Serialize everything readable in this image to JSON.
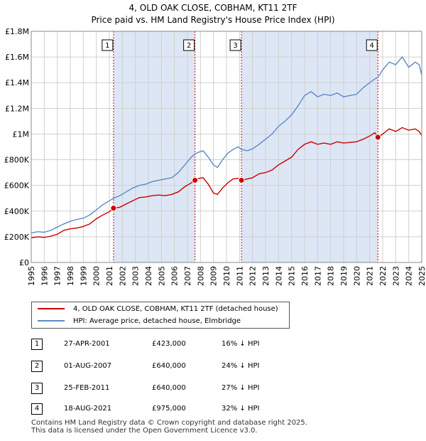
{
  "title_line1": "4, OLD OAK CLOSE, COBHAM, KT11 2TF",
  "title_line2": "Price paid vs. HM Land Registry's House Price Index (HPI)",
  "chart_data": {
    "type": "line",
    "xlim": [
      1995,
      2025
    ],
    "ylim": [
      0,
      1800000
    ],
    "yticks": [
      {
        "value": 0,
        "label": "£0"
      },
      {
        "value": 200000,
        "label": "£200K"
      },
      {
        "value": 400000,
        "label": "£400K"
      },
      {
        "value": 600000,
        "label": "£600K"
      },
      {
        "value": 800000,
        "label": "£800K"
      },
      {
        "value": 1000000,
        "label": "£1M"
      },
      {
        "value": 1200000,
        "label": "£1.2M"
      },
      {
        "value": 1400000,
        "label": "£1.4M"
      },
      {
        "value": 1600000,
        "label": "£1.6M"
      },
      {
        "value": 1800000,
        "label": "£1.8M"
      }
    ],
    "xticks": [
      "1995",
      "1996",
      "1997",
      "1998",
      "1999",
      "2000",
      "2001",
      "2002",
      "2003",
      "2004",
      "2005",
      "2006",
      "2007",
      "2008",
      "2009",
      "2010",
      "2011",
      "2012",
      "2013",
      "2014",
      "2015",
      "2016",
      "2017",
      "2018",
      "2019",
      "2020",
      "2021",
      "2022",
      "2023",
      "2024",
      "2025"
    ],
    "grid": true,
    "colors": {
      "property": "#cc0000",
      "hpi": "#5b8ac7",
      "shade": "#dde6f5",
      "marker": "#cc0000"
    },
    "shaded_periods": [
      [
        2001.32,
        2007.58
      ],
      [
        2011.15,
        2021.63
      ]
    ],
    "series": [
      {
        "name": "4, OLD OAK CLOSE, COBHAM, KT11 2TF (detached house)",
        "color": "#cc0000",
        "points": [
          [
            1995.0,
            192000
          ],
          [
            1995.5,
            200000
          ],
          [
            1996.0,
            195000
          ],
          [
            1996.5,
            205000
          ],
          [
            1997.0,
            220000
          ],
          [
            1997.5,
            250000
          ],
          [
            1998.0,
            262000
          ],
          [
            1998.5,
            268000
          ],
          [
            1999.0,
            280000
          ],
          [
            1999.5,
            300000
          ],
          [
            2000.0,
            340000
          ],
          [
            2000.5,
            370000
          ],
          [
            2001.0,
            395000
          ],
          [
            2001.32,
            423000
          ],
          [
            2001.8,
            430000
          ],
          [
            2002.3,
            455000
          ],
          [
            2002.8,
            480000
          ],
          [
            2003.3,
            505000
          ],
          [
            2003.8,
            510000
          ],
          [
            2004.3,
            520000
          ],
          [
            2004.8,
            525000
          ],
          [
            2005.3,
            520000
          ],
          [
            2005.8,
            530000
          ],
          [
            2006.3,
            550000
          ],
          [
            2006.8,
            590000
          ],
          [
            2007.3,
            620000
          ],
          [
            2007.58,
            640000
          ],
          [
            2007.9,
            655000
          ],
          [
            2008.2,
            660000
          ],
          [
            2008.6,
            610000
          ],
          [
            2009.0,
            540000
          ],
          [
            2009.3,
            530000
          ],
          [
            2009.7,
            580000
          ],
          [
            2010.1,
            620000
          ],
          [
            2010.5,
            650000
          ],
          [
            2010.9,
            655000
          ],
          [
            2011.15,
            640000
          ],
          [
            2011.6,
            650000
          ],
          [
            2012.0,
            660000
          ],
          [
            2012.5,
            690000
          ],
          [
            2013.0,
            700000
          ],
          [
            2013.5,
            720000
          ],
          [
            2014.0,
            760000
          ],
          [
            2014.5,
            790000
          ],
          [
            2015.0,
            820000
          ],
          [
            2015.5,
            880000
          ],
          [
            2016.0,
            920000
          ],
          [
            2016.5,
            940000
          ],
          [
            2017.0,
            920000
          ],
          [
            2017.5,
            930000
          ],
          [
            2018.0,
            920000
          ],
          [
            2018.5,
            940000
          ],
          [
            2019.0,
            930000
          ],
          [
            2019.5,
            935000
          ],
          [
            2020.0,
            940000
          ],
          [
            2020.5,
            960000
          ],
          [
            2021.0,
            985000
          ],
          [
            2021.4,
            1010000
          ],
          [
            2021.63,
            975000
          ],
          [
            2022.0,
            1000000
          ],
          [
            2022.5,
            1040000
          ],
          [
            2023.0,
            1020000
          ],
          [
            2023.5,
            1050000
          ],
          [
            2024.0,
            1030000
          ],
          [
            2024.5,
            1040000
          ],
          [
            2024.8,
            1020000
          ],
          [
            2025.0,
            990000
          ]
        ]
      },
      {
        "name": "HPI: Average price, detached house, Elmbridge",
        "color": "#5b8ac7",
        "points": [
          [
            1995.0,
            230000
          ],
          [
            1995.5,
            240000
          ],
          [
            1996.0,
            235000
          ],
          [
            1996.5,
            250000
          ],
          [
            1997.0,
            275000
          ],
          [
            1997.5,
            300000
          ],
          [
            1998.0,
            320000
          ],
          [
            1998.5,
            335000
          ],
          [
            1999.0,
            345000
          ],
          [
            1999.5,
            370000
          ],
          [
            2000.0,
            410000
          ],
          [
            2000.5,
            450000
          ],
          [
            2001.0,
            480000
          ],
          [
            2001.32,
            500000
          ],
          [
            2001.8,
            520000
          ],
          [
            2002.3,
            550000
          ],
          [
            2002.8,
            580000
          ],
          [
            2003.3,
            600000
          ],
          [
            2003.8,
            610000
          ],
          [
            2004.3,
            630000
          ],
          [
            2004.8,
            640000
          ],
          [
            2005.3,
            650000
          ],
          [
            2005.8,
            660000
          ],
          [
            2006.3,
            700000
          ],
          [
            2006.8,
            760000
          ],
          [
            2007.3,
            820000
          ],
          [
            2007.58,
            845000
          ],
          [
            2007.9,
            860000
          ],
          [
            2008.2,
            870000
          ],
          [
            2008.6,
            820000
          ],
          [
            2009.0,
            760000
          ],
          [
            2009.3,
            740000
          ],
          [
            2009.7,
            800000
          ],
          [
            2010.1,
            850000
          ],
          [
            2010.5,
            880000
          ],
          [
            2010.9,
            900000
          ],
          [
            2011.15,
            880000
          ],
          [
            2011.6,
            870000
          ],
          [
            2012.0,
            885000
          ],
          [
            2012.5,
            920000
          ],
          [
            2013.0,
            960000
          ],
          [
            2013.5,
            1000000
          ],
          [
            2014.0,
            1060000
          ],
          [
            2014.5,
            1100000
          ],
          [
            2015.0,
            1150000
          ],
          [
            2015.5,
            1220000
          ],
          [
            2016.0,
            1300000
          ],
          [
            2016.5,
            1330000
          ],
          [
            2017.0,
            1290000
          ],
          [
            2017.5,
            1310000
          ],
          [
            2018.0,
            1300000
          ],
          [
            2018.5,
            1320000
          ],
          [
            2019.0,
            1290000
          ],
          [
            2019.5,
            1300000
          ],
          [
            2020.0,
            1310000
          ],
          [
            2020.5,
            1360000
          ],
          [
            2021.0,
            1400000
          ],
          [
            2021.4,
            1430000
          ],
          [
            2021.63,
            1440000
          ],
          [
            2022.0,
            1500000
          ],
          [
            2022.5,
            1560000
          ],
          [
            2023.0,
            1540000
          ],
          [
            2023.5,
            1600000
          ],
          [
            2024.0,
            1520000
          ],
          [
            2024.5,
            1560000
          ],
          [
            2024.8,
            1540000
          ],
          [
            2025.0,
            1460000
          ]
        ]
      }
    ],
    "sales": [
      {
        "n": "1",
        "x": 2001.32,
        "y": 423000
      },
      {
        "n": "2",
        "x": 2007.58,
        "y": 640000
      },
      {
        "n": "3",
        "x": 2011.15,
        "y": 640000
      },
      {
        "n": "4",
        "x": 2021.63,
        "y": 975000
      }
    ]
  },
  "legend": {
    "property_label": "4, OLD OAK CLOSE, COBHAM, KT11 2TF (detached house)",
    "hpi_label": "HPI: Average price, detached house, Elmbridge"
  },
  "transactions": [
    {
      "n": "1",
      "date": "27-APR-2001",
      "price": "£423,000",
      "hpi": "16% ↓ HPI"
    },
    {
      "n": "2",
      "date": "01-AUG-2007",
      "price": "£640,000",
      "hpi": "24% ↓ HPI"
    },
    {
      "n": "3",
      "date": "25-FEB-2011",
      "price": "£640,000",
      "hpi": "27% ↓ HPI"
    },
    {
      "n": "4",
      "date": "18-AUG-2021",
      "price": "£975,000",
      "hpi": "32% ↓ HPI"
    }
  ],
  "footer": {
    "line1": "Contains HM Land Registry data © Crown copyright and database right 2025.",
    "line2": "This data is licensed under the Open Government Licence v3.0."
  }
}
